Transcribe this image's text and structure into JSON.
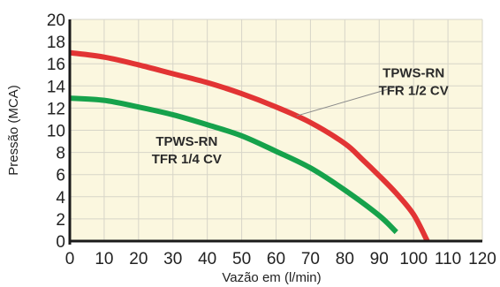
{
  "chart_data": {
    "type": "line",
    "title": "",
    "xlabel": "Vazão em (l/min)",
    "ylabel": "Pressão (MCA)",
    "xlim": [
      0,
      120
    ],
    "ylim": [
      0,
      20
    ],
    "x_ticks": [
      0,
      10,
      20,
      30,
      40,
      50,
      60,
      70,
      80,
      90,
      100,
      110,
      120
    ],
    "y_ticks": [
      0,
      2,
      4,
      6,
      8,
      10,
      12,
      14,
      16,
      18,
      20
    ],
    "grid": true,
    "background_color": "#fbf7df",
    "grid_color": "#d7d5c8",
    "series": [
      {
        "name": "TPWS-RN TFR 1/2 CV",
        "color": "#e23434",
        "x": [
          0,
          10,
          20,
          30,
          40,
          50,
          60,
          70,
          80,
          85,
          90,
          95,
          100,
          104
        ],
        "y": [
          17.0,
          16.6,
          15.9,
          15.1,
          14.3,
          13.3,
          12.1,
          10.7,
          8.8,
          7.4,
          5.9,
          4.3,
          2.4,
          0
        ]
      },
      {
        "name": "TPWS-RN TFR 1/4 CV",
        "color": "#16a24b",
        "x": [
          0,
          10,
          20,
          30,
          40,
          50,
          60,
          70,
          80,
          90,
          95
        ],
        "y": [
          12.9,
          12.7,
          12.1,
          11.4,
          10.5,
          9.5,
          8.1,
          6.6,
          4.6,
          2.3,
          0.8
        ]
      }
    ],
    "annotations": [
      {
        "id": "red",
        "lines": [
          "TPWS-RN",
          "TFR 1/2 CV"
        ],
        "x": 100,
        "y": 14.8,
        "pointer_to": [
          66,
          11.3
        ]
      },
      {
        "id": "green",
        "lines": [
          "TPWS-RN",
          "TFR 1/4 CV"
        ],
        "x": 34,
        "y": 8.6
      }
    ]
  }
}
